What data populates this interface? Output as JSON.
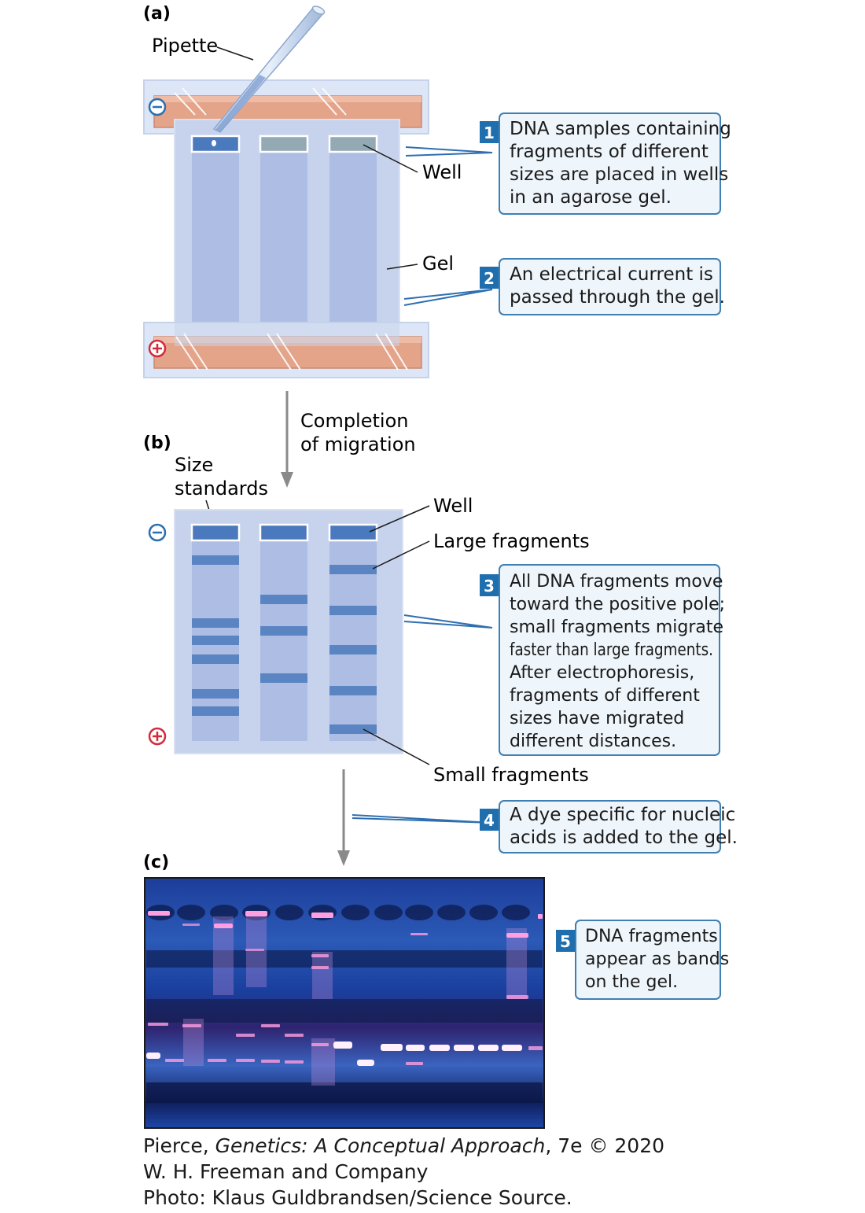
{
  "panels": {
    "a": "(a)",
    "b": "(b)",
    "c": "(c)"
  },
  "labels": {
    "pipette": "Pipette",
    "well_a": "Well",
    "gel": "Gel",
    "completion_line1": "Completion",
    "completion_line2": "of migration",
    "size_standards_line1": "Size",
    "size_standards_line2": "standards",
    "well_b": "Well",
    "large_fragments": "Large fragments",
    "small_fragments": "Small fragments"
  },
  "poles": {
    "negative": "−",
    "positive": "+"
  },
  "steps": [
    {
      "number": "1",
      "lines": [
        "DNA samples containing",
        "fragments of different",
        "sizes are placed in wells",
        "in an agarose gel."
      ]
    },
    {
      "number": "2",
      "lines": [
        "An electrical current is",
        "passed through the gel."
      ]
    },
    {
      "number": "3",
      "lines": [
        "All DNA fragments move",
        "toward the positive pole;",
        "small fragments migrate",
        "faster than large fragments.",
        "After electrophoresis,",
        "fragments of different",
        "sizes have migrated",
        "different distances."
      ]
    },
    {
      "number": "4",
      "lines": [
        "A dye specific for nucleic",
        "acids is added to the gel."
      ]
    },
    {
      "number": "5",
      "lines": [
        "DNA fragments",
        "appear as bands",
        "on the gel."
      ]
    }
  ],
  "caption": {
    "line1_prefix": "Pierce, ",
    "line1_title": "Genetics: A Conceptual Approach",
    "line1_suffix": ", 7e © 2020",
    "line2": "W. H. Freeman and Company",
    "line3": "Photo: Klaus Guldbrandsen/Science Source."
  },
  "colors": {
    "gel": "#c7d3ec",
    "lane": "#aebde3",
    "band": "#5a84c2",
    "well_filled": "#4a79bd",
    "well_gray": "#93a9b3",
    "electrode": "#e4a48a",
    "step_badge": "#1f6fae",
    "box_border": "#3f7fb2",
    "box_fill": "#eef5fb",
    "neg_pole": "#2a6fb0",
    "pos_pole": "#d22b3a"
  }
}
